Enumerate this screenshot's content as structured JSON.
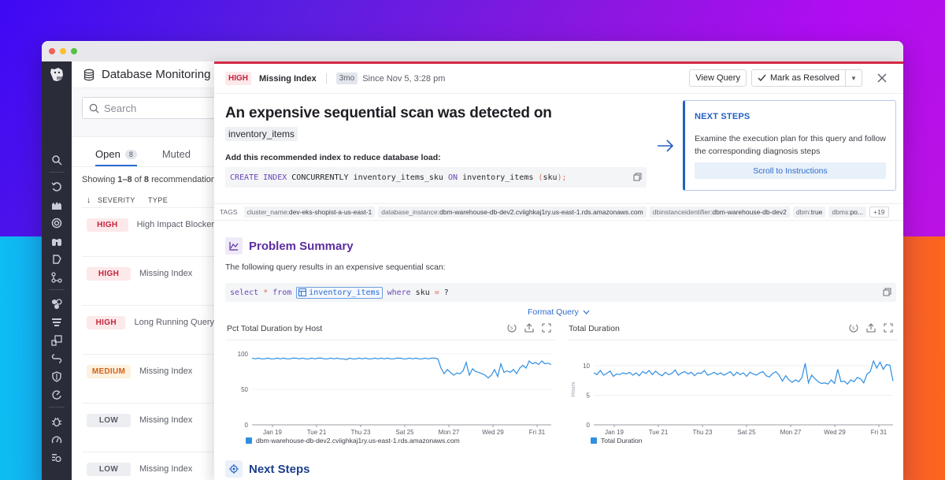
{
  "window": {
    "traffic_lights": [
      "close",
      "minimize",
      "maximize"
    ]
  },
  "navbar": {
    "icons": [
      "search-icon",
      "history-icon",
      "infrastructure-icon",
      "apm-icon",
      "watchdog-icon",
      "security-icon",
      "workflow-icon",
      "integrations-icon",
      "logs-icon",
      "dashboards-icon",
      "service-map-icon",
      "shield-icon",
      "synthetics-icon",
      "bug-icon",
      "rum-icon",
      "ci-icon"
    ]
  },
  "left_panel": {
    "title": "Database Monitoring",
    "search_placeholder": "Search",
    "tabs": [
      {
        "label": "Open",
        "count": "8",
        "active": true
      },
      {
        "label": "Muted",
        "active": false
      }
    ],
    "showing": {
      "prefix": "Showing ",
      "range": "1–8",
      "of": " of ",
      "total": "8",
      "suffix": " recommendations"
    },
    "columns": {
      "severity": "SEVERITY",
      "type": "TYPE"
    },
    "rows": [
      {
        "severity": "HIGH",
        "level": "high",
        "type": "High Impact Blocker"
      },
      {
        "severity": "HIGH",
        "level": "high",
        "type": "Missing Index"
      },
      {
        "severity": "HIGH",
        "level": "high",
        "type": "Long Running Query"
      },
      {
        "severity": "MEDIUM",
        "level": "medium",
        "type": "Missing Index"
      },
      {
        "severity": "LOW",
        "level": "low",
        "type": "Missing Index"
      },
      {
        "severity": "LOW",
        "level": "low",
        "type": "Missing Index"
      }
    ]
  },
  "detail": {
    "header": {
      "severity": "HIGH",
      "type": "Missing Index",
      "age": "3mo",
      "since": "Since Nov 5, 3:28 pm",
      "view_query": "View Query",
      "mark_resolved": "Mark as Resolved"
    },
    "headline": "An expensive sequential scan was detected on",
    "table_name": "inventory_items",
    "recommend_label": "Add this recommended index to reduce database load:",
    "create_sql": {
      "kw1": "CREATE INDEX",
      "kw2": "CONCURRENTLY",
      "index_name": "inventory_items_sku",
      "kw3": "ON",
      "table": "inventory_items",
      "paren_open": "(",
      "col": "sku",
      "paren_close": ");"
    },
    "next_steps_card": {
      "title": "NEXT STEPS",
      "description": "Examine the execution plan for this query and follow the corresponding diagnosis steps",
      "button": "Scroll to Instructions"
    },
    "tags": {
      "label": "TAGS",
      "items": [
        {
          "key": "cluster_name:",
          "value": "dev-eks-shopist-a-us-east-1"
        },
        {
          "key": "database_instance:",
          "value": "dbm-warehouse-db-dev2.cviighkaj1ry.us-east-1.rds.amazonaws.com"
        },
        {
          "key": "dbinstanceidentifier:",
          "value": "dbm-warehouse-db-dev2"
        },
        {
          "key": "dbm:",
          "value": "true"
        },
        {
          "key": "dbms:",
          "value": "po..."
        }
      ],
      "more": "+19"
    },
    "problem_summary": {
      "title": "Problem Summary",
      "description": "The following query results in an expensive sequential scan:",
      "query": {
        "select": "select",
        "star": "*",
        "from": "from",
        "table": "inventory_items",
        "where": "where",
        "col": "sku",
        "eq": "=",
        "param": "?"
      },
      "format_query": "Format Query"
    },
    "next_steps_section": {
      "title": "Next Steps"
    }
  },
  "colors": {
    "accent_red": "#d52845",
    "accent_blue": "#2360c4",
    "series_blue": "#2f8ee0",
    "purple": "#5b2d9e"
  },
  "chart_data": [
    {
      "type": "line",
      "title": "Pct Total Duration by Host",
      "xlabel": "",
      "ylabel": "",
      "ylim": [
        0,
        100
      ],
      "yticks": [
        0,
        50,
        100
      ],
      "x_tick_labels": [
        "Jan 19",
        "Tue 21",
        "Thu 23",
        "Sat 25",
        "Mon 27",
        "Wed 29",
        "Fri 31"
      ],
      "grid": true,
      "legend_position": "bottom",
      "series": [
        {
          "name": "dbm-warehouse-db-dev2.cviighkaj1ry.us-east-1.rds.amazonaws.com",
          "values": [
            94,
            93,
            94,
            93,
            93,
            94,
            93,
            93,
            94,
            93,
            94,
            93,
            93,
            94,
            94,
            93,
            94,
            93,
            93,
            94,
            93,
            94,
            94,
            93,
            93,
            94,
            93,
            94,
            93,
            93,
            92,
            94,
            93,
            93,
            94,
            93,
            94,
            93,
            93,
            94,
            93,
            94,
            93,
            94,
            93,
            93,
            94,
            94,
            93,
            93,
            94,
            93,
            94,
            93,
            93,
            94,
            93,
            94,
            94,
            93,
            80,
            72,
            78,
            74,
            70,
            73,
            72,
            76,
            88,
            70,
            79,
            75,
            74,
            72,
            70,
            66,
            70,
            78,
            68,
            86,
            74,
            76,
            74,
            78,
            72,
            80,
            84,
            80,
            90,
            86,
            88,
            85,
            90,
            86,
            87,
            85
          ]
        }
      ]
    },
    {
      "type": "line",
      "title": "Total Duration",
      "xlabel": "",
      "ylabel": "Hours",
      "ylim": [
        0,
        12
      ],
      "yticks": [
        0,
        5,
        10
      ],
      "x_tick_labels": [
        "Jan 19",
        "Tue 21",
        "Thu 23",
        "Sat 25",
        "Mon 27",
        "Wed 29",
        "Fri 31"
      ],
      "grid": true,
      "legend_position": "bottom",
      "series": [
        {
          "name": "Total Duration",
          "values": [
            8.8,
            8.5,
            9.2,
            8.4,
            8.7,
            9.1,
            8.2,
            8.6,
            8.5,
            8.8,
            8.6,
            8.9,
            8.4,
            8.8,
            8.3,
            9.0,
            8.7,
            9.2,
            8.5,
            9.1,
            8.6,
            8.3,
            8.9,
            8.5,
            8.7,
            9.3,
            8.4,
            8.8,
            9.0,
            8.6,
            8.9,
            8.3,
            8.8,
            8.7,
            9.2,
            8.4,
            8.6,
            8.9,
            8.5,
            8.8,
            8.4,
            8.7,
            9.0,
            8.3,
            8.9,
            8.5,
            8.8,
            8.2,
            8.9,
            8.6,
            8.4,
            8.8,
            9.0,
            8.3,
            8.1,
            8.7,
            9.0,
            8.4,
            7.4,
            8.3,
            7.6,
            7.2,
            7.6,
            7.3,
            8.0,
            10.4,
            7.1,
            8.4,
            7.8,
            7.3,
            7.0,
            7.1,
            6.9,
            7.6,
            7.0,
            9.4,
            7.3,
            7.4,
            6.9,
            7.6,
            7.3,
            8.0,
            7.8,
            7.1,
            8.6,
            9.0,
            10.8,
            9.6,
            10.6,
            9.4,
            10.2,
            10.1,
            7.4
          ]
        }
      ]
    }
  ]
}
